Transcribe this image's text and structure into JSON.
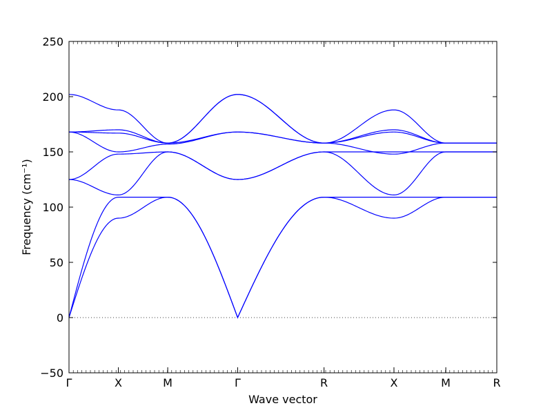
{
  "chart_data": {
    "type": "line",
    "title": "",
    "xlabel": "Wave vector",
    "ylabel": "Frequency (cm⁻¹)",
    "ylim": [
      -50,
      250
    ],
    "yticks": [
      -50,
      0,
      50,
      100,
      150,
      200,
      250
    ],
    "ytick_labels": [
      "−50",
      "0",
      "50",
      "100",
      "150",
      "200",
      "250"
    ],
    "xlim": [
      0,
      5.2
    ],
    "high_symmetry_points": [
      {
        "label": "Γ",
        "x": 0
      },
      {
        "label": "X",
        "x": 0.6
      },
      {
        "label": "M",
        "x": 1.2
      },
      {
        "label": "Γ",
        "x": 2.05
      },
      {
        "label": "R",
        "x": 3.1
      },
      {
        "label": "X",
        "x": 3.95
      },
      {
        "label": "M",
        "x": 4.58
      },
      {
        "label": "R",
        "x": 5.2
      }
    ],
    "line_color": "#0000ff",
    "zero_line": {
      "y": 0,
      "style": "dotted"
    },
    "bands": [
      {
        "values": [
          0,
          90,
          109,
          0,
          109,
          90,
          109,
          109
        ]
      },
      {
        "values": [
          0,
          109,
          109,
          0,
          109,
          109,
          109,
          109
        ]
      },
      {
        "values": [
          125,
          111,
          150,
          125,
          150,
          111,
          150,
          150
        ]
      },
      {
        "values": [
          125,
          148,
          150,
          125,
          150,
          150,
          150,
          150
        ]
      },
      {
        "values": [
          168,
          150,
          157,
          168,
          158,
          148,
          158,
          158
        ]
      },
      {
        "values": [
          168,
          167,
          158,
          168,
          158,
          168,
          158,
          158
        ]
      },
      {
        "values": [
          168,
          170,
          158,
          202,
          158,
          170,
          158,
          158
        ]
      },
      {
        "values": [
          202,
          188,
          158,
          202,
          158,
          188,
          158,
          158
        ]
      }
    ]
  }
}
